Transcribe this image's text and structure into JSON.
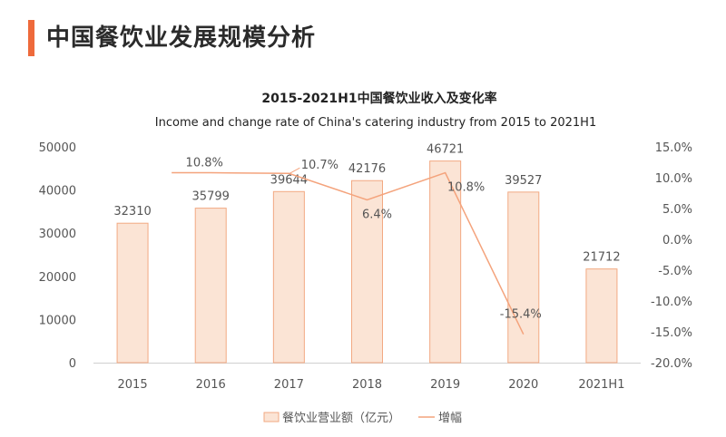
{
  "header": {
    "title": "中国餐饮业发展规模分析",
    "accent_color": "#ee6a3b"
  },
  "chart_data": {
    "type": "bar",
    "title": "2015-2021H1中国餐饮业收入及变化率",
    "subtitle": "Income and change rate of China's catering industry from 2015 to 2021H1",
    "categories": [
      "2015",
      "2016",
      "2017",
      "2018",
      "2019",
      "2020",
      "2021H1"
    ],
    "series": [
      {
        "name": "餐饮业营业额（亿元）",
        "type": "bar",
        "axis": "left",
        "values": [
          32310,
          35799,
          39644,
          42176,
          46721,
          39527,
          21712
        ],
        "labels": [
          "32310",
          "35799",
          "39644",
          "42176",
          "46721",
          "39527",
          "21712"
        ],
        "fill": "#fbe4d5",
        "stroke": "#f2a982"
      },
      {
        "name": "增幅",
        "type": "line",
        "axis": "right",
        "values": [
          null,
          10.8,
          10.7,
          6.4,
          10.8,
          -15.4,
          null
        ],
        "labels": [
          "",
          "10.8%",
          "10.7%",
          "6.4%",
          "10.8%",
          "-15.4%",
          ""
        ],
        "stroke": "#f4a37c"
      }
    ],
    "y_left": {
      "ylim": [
        0,
        50000
      ],
      "ticks": [
        "0",
        "10000",
        "20000",
        "30000",
        "40000",
        "50000"
      ],
      "tick_values": [
        0,
        10000,
        20000,
        30000,
        40000,
        50000
      ]
    },
    "y_right": {
      "ylim": [
        -20,
        15
      ],
      "ticks": [
        "-20.0%",
        "-15.0%",
        "-10.0%",
        "-5.0%",
        "0.0%",
        "5.0%",
        "10.0%",
        "15.0%"
      ],
      "tick_values": [
        -20,
        -15,
        -10,
        -5,
        0,
        5,
        10,
        15
      ]
    },
    "legend_position": "bottom-center",
    "grid": false
  }
}
